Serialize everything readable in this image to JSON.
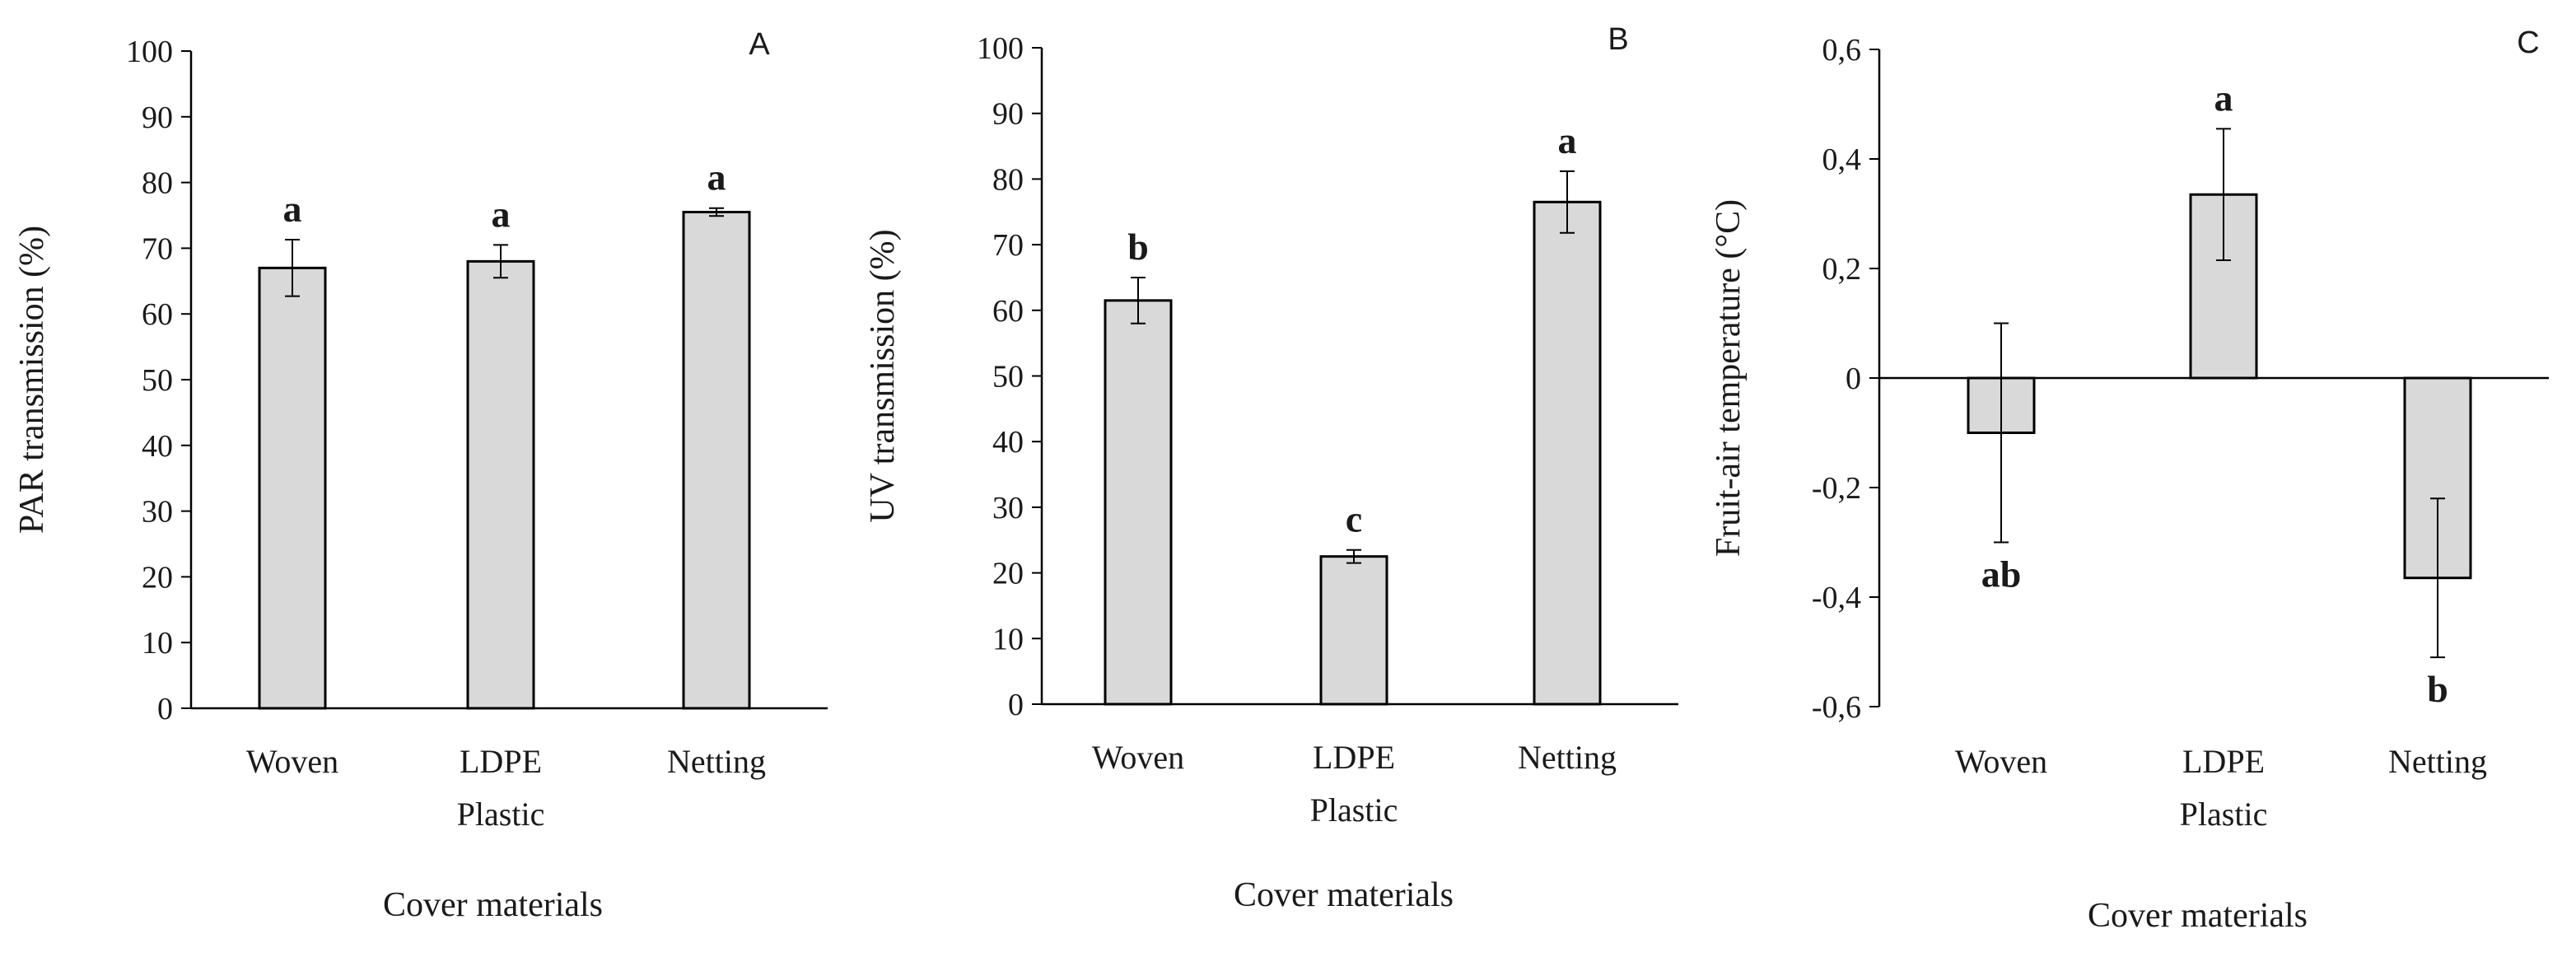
{
  "chart_data": [
    {
      "type": "bar",
      "panel": "A",
      "categories": [
        "Woven",
        "LDPE Plastic",
        "Netting"
      ],
      "category_lines": [
        [
          "Woven"
        ],
        [
          "LDPE",
          "Plastic"
        ],
        [
          "Netting"
        ]
      ],
      "values": [
        67,
        68,
        75.5
      ],
      "errors": [
        4.3,
        2.5,
        0.6
      ],
      "significance": [
        "a",
        "a",
        "a"
      ],
      "xlabel": "Cover materials",
      "ylabel": "PAR transmission (%)",
      "ylim": [
        0,
        100
      ],
      "yticks": [
        0,
        10,
        20,
        30,
        40,
        50,
        60,
        70,
        80,
        90,
        100
      ],
      "ytick_labels": [
        "0",
        "10",
        "20",
        "30",
        "40",
        "50",
        "60",
        "70",
        "80",
        "90",
        "100"
      ],
      "grid": false
    },
    {
      "type": "bar",
      "panel": "B",
      "categories": [
        "Woven",
        "LDPE Plastic",
        "Netting"
      ],
      "category_lines": [
        [
          "Woven"
        ],
        [
          "LDPE",
          "Plastic"
        ],
        [
          "Netting"
        ]
      ],
      "values": [
        61.5,
        22.5,
        76.5
      ],
      "errors": [
        3.5,
        1.0,
        4.7
      ],
      "significance": [
        "b",
        "c",
        "a"
      ],
      "xlabel": "Cover materials",
      "ylabel": "UV transmission (%)",
      "ylim": [
        0,
        100
      ],
      "yticks": [
        0,
        10,
        20,
        30,
        40,
        50,
        60,
        70,
        80,
        90,
        100
      ],
      "ytick_labels": [
        "0",
        "10",
        "20",
        "30",
        "40",
        "50",
        "60",
        "70",
        "80",
        "90",
        "100"
      ],
      "grid": false
    },
    {
      "type": "bar",
      "panel": "C",
      "categories": [
        "Woven",
        "LDPE Plastic",
        "Netting"
      ],
      "category_lines": [
        [
          "Woven"
        ],
        [
          "LDPE",
          "Plastic"
        ],
        [
          "Netting"
        ]
      ],
      "values": [
        -0.1,
        0.335,
        -0.365
      ],
      "errors": [
        0.2,
        0.12,
        0.145
      ],
      "significance": [
        "ab",
        "a",
        "b"
      ],
      "xlabel": "Cover materials",
      "ylabel": "Fruit-air temperature (°C)",
      "ylim": [
        -0.6,
        0.6
      ],
      "yticks": [
        -0.6,
        -0.4,
        -0.2,
        0,
        0.2,
        0.4,
        0.6
      ],
      "ytick_labels": [
        "-0,6",
        "-0,4",
        "-0,2",
        "0",
        "0,2",
        "0,4",
        "0,6"
      ],
      "grid": false
    }
  ]
}
